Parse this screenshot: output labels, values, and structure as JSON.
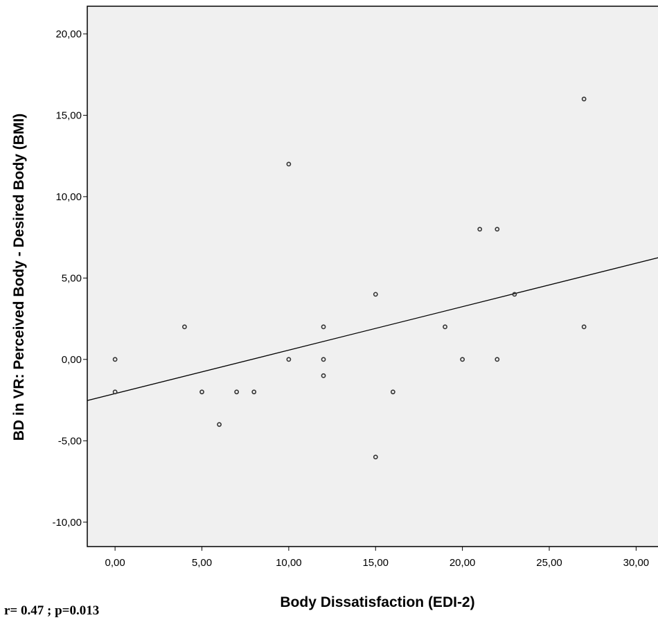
{
  "chart_data": {
    "type": "scatter",
    "title": "",
    "xlabel": "Body Dissatisfaction (EDI-2)",
    "ylabel": "BD in VR: Perceived Body - Desired Body (BMI)",
    "xlim": [
      -1.6,
      31.5
    ],
    "ylim": [
      -11.5,
      21.7
    ],
    "x_ticks": [
      0,
      5,
      10,
      15,
      20,
      25,
      30
    ],
    "x_tick_labels": [
      "0,00",
      "5,00",
      "10,00",
      "15,00",
      "20,00",
      "25,00",
      "30,00"
    ],
    "y_ticks": [
      -10,
      -5,
      0,
      5,
      10,
      15,
      20
    ],
    "y_tick_labels": [
      "-10,00",
      "-5,00",
      "0,00",
      "5,00",
      "10,00",
      "15,00",
      "20,00"
    ],
    "points": [
      {
        "x": 0,
        "y": 0
      },
      {
        "x": 0,
        "y": -2
      },
      {
        "x": 4,
        "y": 2
      },
      {
        "x": 5,
        "y": -2
      },
      {
        "x": 6,
        "y": -4
      },
      {
        "x": 7,
        "y": -2
      },
      {
        "x": 8,
        "y": -2
      },
      {
        "x": 10,
        "y": 12
      },
      {
        "x": 10,
        "y": 0
      },
      {
        "x": 12,
        "y": 2
      },
      {
        "x": 12,
        "y": 0
      },
      {
        "x": 12,
        "y": -1
      },
      {
        "x": 15,
        "y": 4
      },
      {
        "x": 15,
        "y": -6
      },
      {
        "x": 16,
        "y": -2
      },
      {
        "x": 19,
        "y": 2
      },
      {
        "x": 20,
        "y": 0
      },
      {
        "x": 21,
        "y": 8
      },
      {
        "x": 22,
        "y": 8
      },
      {
        "x": 22,
        "y": 0
      },
      {
        "x": 23,
        "y": 4
      },
      {
        "x": 27,
        "y": 16
      },
      {
        "x": 27,
        "y": 2
      }
    ],
    "fit_line": {
      "intercept": -2.1,
      "slope": 0.267
    },
    "grid": false,
    "legend": "none",
    "colors": {
      "plot_background": "#f0f0f0",
      "marker": "#333333",
      "line": "#000000"
    }
  },
  "annotation": "r= 0.47 ; p=0.013"
}
